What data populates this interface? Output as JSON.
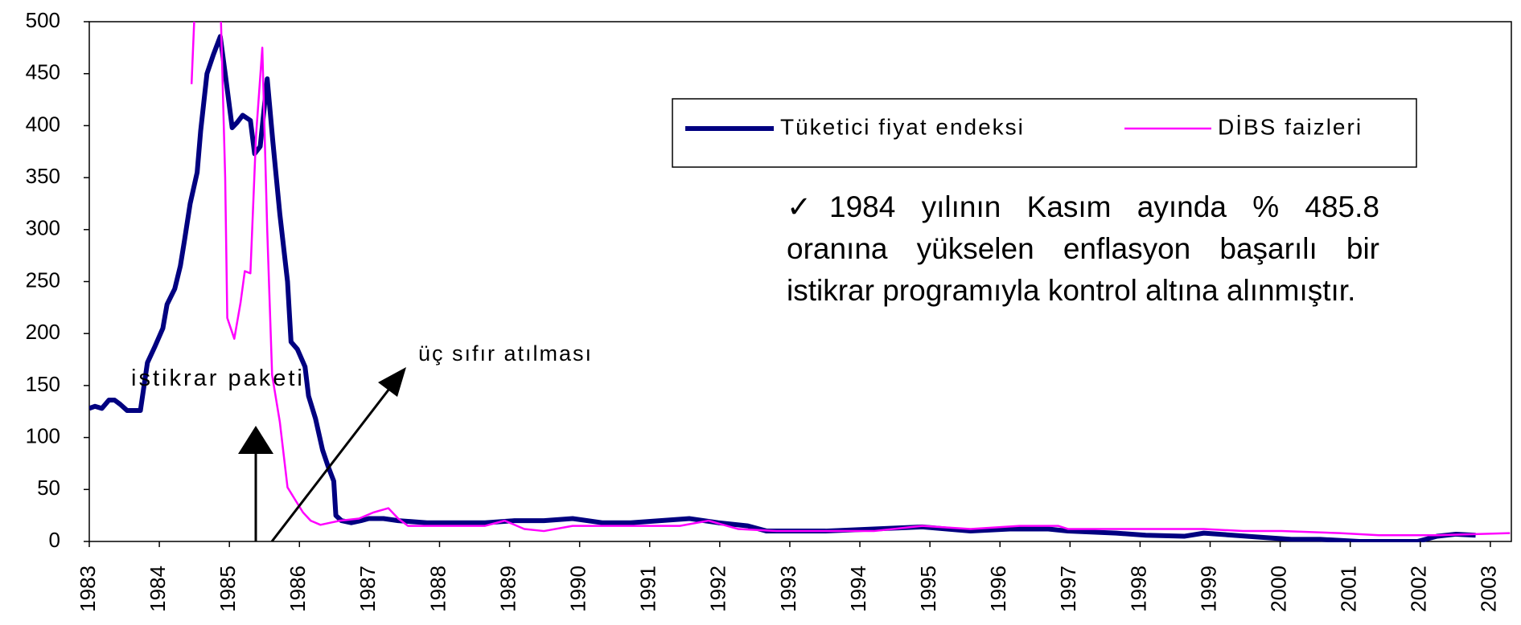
{
  "chart_data": {
    "type": "line",
    "xlim": [
      1983,
      2003.3
    ],
    "xticks": [
      1983,
      1984,
      1985,
      1986,
      1987,
      1988,
      1989,
      1990,
      1991,
      1992,
      1993,
      1994,
      1995,
      1996,
      1997,
      1998,
      1999,
      2000,
      2001,
      2002,
      2003
    ],
    "ylim": [
      0,
      500
    ],
    "yticks": [
      0,
      50,
      100,
      150,
      200,
      250,
      300,
      350,
      400,
      450,
      500
    ],
    "legend": "upper right",
    "series": [
      {
        "name": "Tüketici fiyat endeksi",
        "color": "#000080",
        "x": [
          1983.0,
          1983.08,
          1983.18,
          1983.28,
          1983.36,
          1983.44,
          1983.54,
          1983.73,
          1983.83,
          1983.94,
          1984.05,
          1984.11,
          1984.22,
          1984.3,
          1984.36,
          1984.44,
          1984.54,
          1984.59,
          1984.68,
          1984.77,
          1984.87,
          1984.95,
          1985.04,
          1985.11,
          1985.19,
          1985.3,
          1985.36,
          1985.44,
          1985.54,
          1985.62,
          1985.72,
          1985.83,
          1985.88,
          1985.97,
          1986.08,
          1986.13,
          1986.23,
          1986.33,
          1986.41,
          1986.49,
          1986.52,
          1986.6,
          1986.74,
          1986.88,
          1986.99,
          1987.2,
          1987.41,
          1987.82,
          1988.38,
          1988.65,
          1989.07,
          1989.49,
          1989.9,
          1990.32,
          1990.73,
          1991.15,
          1991.57,
          1991.98,
          1992.4,
          1992.67,
          1993.09,
          1993.51,
          1994.2,
          1994.89,
          1995.58,
          1996.14,
          1996.69,
          1996.97,
          1997.66,
          1998.08,
          1998.63,
          1998.91,
          1999.74,
          2000.16,
          2000.57,
          2001.13,
          2001.96,
          2002.24,
          2002.51,
          2002.79
        ],
        "values": [
          128,
          130,
          128,
          136,
          136,
          132,
          126,
          126,
          172,
          188,
          205,
          228,
          243,
          265,
          290,
          325,
          355,
          395,
          450,
          468,
          485.8,
          445,
          398,
          403,
          410,
          405,
          373,
          380,
          445,
          385,
          315,
          250,
          192,
          185,
          168,
          140,
          118,
          88,
          72,
          58,
          25,
          20,
          18,
          20,
          22,
          22,
          20,
          18,
          18,
          18,
          20,
          20,
          22,
          18,
          18,
          20,
          22,
          18,
          15,
          10,
          10,
          10,
          12,
          14,
          10,
          12,
          12,
          10,
          8,
          6,
          5,
          8,
          4,
          2,
          2,
          0,
          0,
          5,
          7,
          6
        ]
      },
      {
        "name": "DİBS faizleri",
        "color": "#ff00ff",
        "x": [
          1984.46,
          1984.51,
          1984.86,
          1984.88,
          1984.94,
          1984.97,
          1985.07,
          1985.16,
          1985.22,
          1985.3,
          1985.38,
          1985.47,
          1985.54,
          1985.61,
          1985.72,
          1985.83,
          1985.94,
          1986.05,
          1986.16,
          1986.3,
          1986.44,
          1986.58,
          1986.85,
          1987.06,
          1987.27,
          1987.41,
          1987.55,
          1987.96,
          1988.65,
          1988.93,
          1989.21,
          1989.49,
          1989.9,
          1990.32,
          1990.73,
          1991.15,
          1991.43,
          1991.84,
          1992.26,
          1992.81,
          1993.51,
          1994.2,
          1994.89,
          1995.58,
          1996.28,
          1996.83,
          1996.97,
          1997.66,
          1998.36,
          1998.91,
          1999.47,
          2000.02,
          2000.85,
          2001.41,
          2002.24,
          2003.28
        ],
        "values": [
          440,
          520,
          520,
          500,
          350,
          215,
          195,
          230,
          260,
          258,
          390,
          475,
          300,
          160,
          115,
          52,
          40,
          28,
          20,
          16,
          18,
          20,
          22,
          28,
          32,
          22,
          15,
          15,
          15,
          20,
          12,
          10,
          15,
          15,
          15,
          15,
          15,
          20,
          12,
          10,
          10,
          10,
          15,
          12,
          15,
          15,
          12,
          12,
          12,
          12,
          10,
          10,
          8,
          6,
          6,
          8
        ]
      }
    ],
    "annotations": [
      "istikrar paketi",
      "üç sıfır atılması"
    ],
    "note": "✓1984 yılının Kasım ayında % 485.8 oranına yükselen enflasyon başarılı bir istikrar programıyla kontrol altına alınmıştır."
  }
}
